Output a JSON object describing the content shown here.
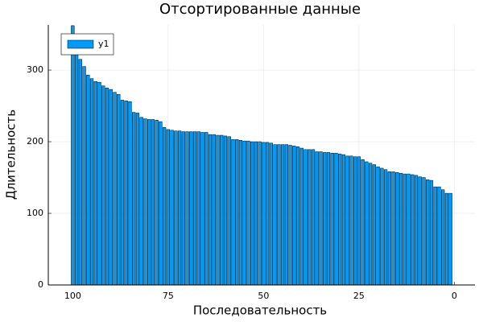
{
  "chart_data": {
    "type": "bar",
    "title": "Отсортированные данные",
    "xlabel": "Последовательность",
    "ylabel": "Длительность",
    "x": [
      100,
      99,
      98,
      97,
      96,
      95,
      94,
      93,
      92,
      91,
      90,
      89,
      88,
      87,
      86,
      85,
      84,
      83,
      82,
      81,
      80,
      79,
      78,
      77,
      76,
      75,
      74,
      73,
      72,
      71,
      70,
      69,
      68,
      67,
      66,
      65,
      64,
      63,
      62,
      61,
      60,
      59,
      58,
      57,
      56,
      55,
      54,
      53,
      52,
      51,
      50,
      49,
      48,
      47,
      46,
      45,
      44,
      43,
      42,
      41,
      40,
      39,
      38,
      37,
      36,
      35,
      34,
      33,
      32,
      31,
      30,
      29,
      28,
      27,
      26,
      25,
      24,
      23,
      22,
      21,
      20,
      19,
      18,
      17,
      16,
      15,
      14,
      13,
      12,
      11,
      10,
      9,
      8,
      7,
      6,
      5,
      4,
      3,
      2,
      1
    ],
    "series": [
      {
        "name": "y1",
        "color": "#009af9",
        "values": [
          362,
          327,
          315,
          305,
          293,
          288,
          284,
          283,
          278,
          275,
          273,
          269,
          266,
          258,
          257,
          256,
          241,
          240,
          234,
          232,
          231,
          231,
          230,
          228,
          220,
          217,
          216,
          215,
          215,
          214,
          214,
          214,
          214,
          214,
          213,
          213,
          210,
          210,
          209,
          209,
          208,
          207,
          203,
          203,
          202,
          201,
          201,
          200,
          200,
          200,
          199,
          199,
          198,
          196,
          196,
          196,
          196,
          195,
          194,
          193,
          191,
          189,
          189,
          189,
          186,
          186,
          185,
          185,
          184,
          184,
          183,
          182,
          180,
          180,
          179,
          179,
          175,
          172,
          170,
          168,
          165,
          163,
          161,
          158,
          158,
          157,
          156,
          155,
          155,
          154,
          153,
          151,
          150,
          147,
          146,
          137,
          137,
          133,
          128,
          128
        ]
      }
    ],
    "xlim": [
      106.4,
      -5.4
    ],
    "xticks": [
      100,
      75,
      50,
      25,
      0
    ],
    "ylim": [
      0,
      363
    ],
    "yticks": [
      0,
      100,
      200,
      300
    ],
    "grid": true,
    "legend": "top-left"
  }
}
